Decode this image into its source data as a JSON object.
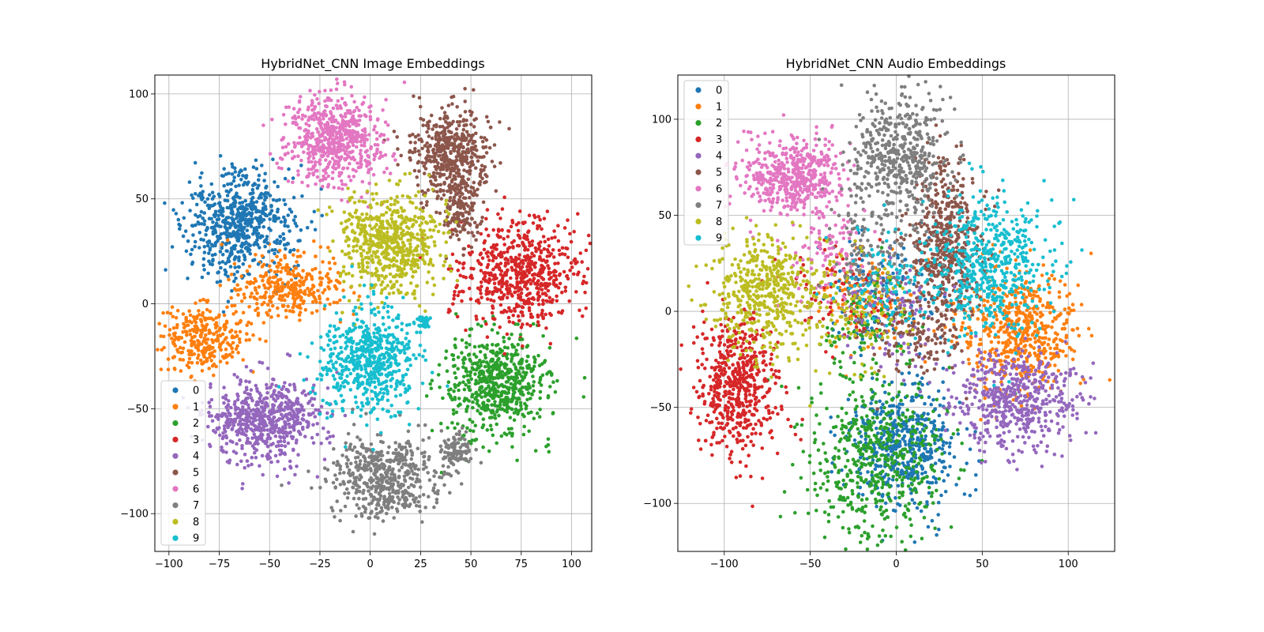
{
  "figure": {
    "background": "#ffffff"
  },
  "palette": {
    "0": "#1f77b4",
    "1": "#ff7f0e",
    "2": "#2ca02c",
    "3": "#d62728",
    "4": "#9467bd",
    "5": "#8c564b",
    "6": "#e377c2",
    "7": "#7f7f7f",
    "8": "#bcbd22",
    "9": "#17becf"
  },
  "chart_data": [
    {
      "type": "scatter",
      "title": "HybridNet_CNN Image Embeddings",
      "xlabel": "",
      "ylabel": "",
      "xlim": [
        -107,
        110
      ],
      "ylim": [
        -118,
        109
      ],
      "xticks": [
        -100,
        -75,
        -50,
        -25,
        0,
        25,
        50,
        75,
        100
      ],
      "yticks": [
        -100,
        -50,
        0,
        50,
        100
      ],
      "xtick_labels": [
        "−100",
        "−75",
        "−50",
        "−25",
        "0",
        "25",
        "50",
        "75",
        "100"
      ],
      "ytick_labels": [
        "−100",
        "−50",
        "0",
        "50",
        "100"
      ],
      "grid": true,
      "legend": {
        "placement": "lower-left",
        "entries": [
          "0",
          "1",
          "2",
          "3",
          "4",
          "5",
          "6",
          "7",
          "8",
          "9"
        ]
      },
      "series": [
        {
          "name": "0",
          "color": "#1f77b4",
          "clusters": [
            {
              "cx": -64,
              "cy": 38,
              "sx": 13,
              "sy": 13,
              "share": 1.0
            }
          ]
        },
        {
          "name": "1",
          "color": "#ff7f0e",
          "clusters": [
            {
              "cx": -40,
              "cy": 8,
              "sx": 14,
              "sy": 8,
              "share": 0.5
            },
            {
              "cx": -82,
              "cy": -16,
              "sx": 12,
              "sy": 8,
              "share": 0.5
            }
          ]
        },
        {
          "name": "2",
          "color": "#2ca02c",
          "clusters": [
            {
              "cx": 63,
              "cy": -38,
              "sx": 13,
              "sy": 12,
              "share": 1.0
            }
          ]
        },
        {
          "name": "3",
          "color": "#d62728",
          "clusters": [
            {
              "cx": 73,
              "cy": 15,
              "sx": 14,
              "sy": 13,
              "share": 1.0
            }
          ]
        },
        {
          "name": "4",
          "color": "#9467bd",
          "clusters": [
            {
              "cx": -52,
              "cy": -55,
              "sx": 14,
              "sy": 10,
              "share": 1.0
            }
          ]
        },
        {
          "name": "5",
          "color": "#8c564b",
          "clusters": [
            {
              "cx": 40,
              "cy": 72,
              "sx": 10,
              "sy": 11,
              "share": 0.75
            },
            {
              "cx": 45,
              "cy": 45,
              "sx": 5,
              "sy": 9,
              "share": 0.25
            }
          ]
        },
        {
          "name": "6",
          "color": "#e377c2",
          "clusters": [
            {
              "cx": -18,
              "cy": 78,
              "sx": 12,
              "sy": 11,
              "share": 1.0
            }
          ]
        },
        {
          "name": "7",
          "color": "#7f7f7f",
          "clusters": [
            {
              "cx": 7,
              "cy": -83,
              "sx": 14,
              "sy": 10,
              "share": 0.85
            },
            {
              "cx": 43,
              "cy": -70,
              "sx": 4,
              "sy": 4,
              "share": 0.15
            }
          ]
        },
        {
          "name": "8",
          "color": "#bcbd22",
          "clusters": [
            {
              "cx": 10,
              "cy": 28,
              "sx": 12,
              "sy": 12,
              "share": 1.0
            }
          ]
        },
        {
          "name": "9",
          "color": "#17becf",
          "clusters": [
            {
              "cx": -1,
              "cy": -27,
              "sx": 12,
              "sy": 13,
              "share": 0.95
            },
            {
              "cx": 26,
              "cy": -9,
              "sx": 2,
              "sy": 2,
              "share": 0.05
            }
          ]
        }
      ]
    },
    {
      "type": "scatter",
      "title": "HybridNet_CNN Audio Embeddings",
      "xlabel": "",
      "ylabel": "",
      "xlim": [
        -127,
        127
      ],
      "ylim": [
        -125,
        123
      ],
      "xticks": [
        -100,
        -50,
        0,
        50,
        100
      ],
      "yticks": [
        -100,
        -50,
        0,
        50,
        100
      ],
      "xtick_labels": [
        "−100",
        "−50",
        "0",
        "50",
        "100"
      ],
      "ytick_labels": [
        "−100",
        "−50",
        "0",
        "50",
        "100"
      ],
      "grid": true,
      "legend": {
        "placement": "upper-left",
        "entries": [
          "0",
          "1",
          "2",
          "3",
          "4",
          "5",
          "6",
          "7",
          "8",
          "9"
        ]
      },
      "series": [
        {
          "name": "0",
          "color": "#1f77b4",
          "clusters": [
            {
              "cx": 5,
              "cy": -70,
              "sx": 16,
              "sy": 15,
              "share": 0.8
            },
            {
              "cx": -10,
              "cy": 10,
              "sx": 14,
              "sy": 14,
              "share": 0.2
            }
          ]
        },
        {
          "name": "1",
          "color": "#ff7f0e",
          "clusters": [
            {
              "cx": 72,
              "cy": -10,
              "sx": 18,
              "sy": 16,
              "share": 0.85
            },
            {
              "cx": -15,
              "cy": 5,
              "sx": 14,
              "sy": 14,
              "share": 0.15
            }
          ]
        },
        {
          "name": "2",
          "color": "#2ca02c",
          "clusters": [
            {
              "cx": -12,
              "cy": -78,
              "sx": 20,
              "sy": 20,
              "share": 0.85
            },
            {
              "cx": -20,
              "cy": -10,
              "sx": 14,
              "sy": 14,
              "share": 0.15
            }
          ]
        },
        {
          "name": "3",
          "color": "#d62728",
          "clusters": [
            {
              "cx": -92,
              "cy": -40,
              "sx": 12,
              "sy": 18,
              "share": 0.85
            },
            {
              "cx": -35,
              "cy": 10,
              "sx": 16,
              "sy": 14,
              "share": 0.15
            }
          ]
        },
        {
          "name": "4",
          "color": "#9467bd",
          "clusters": [
            {
              "cx": 70,
              "cy": -45,
              "sx": 18,
              "sy": 13,
              "share": 0.85
            },
            {
              "cx": -5,
              "cy": 0,
              "sx": 14,
              "sy": 14,
              "share": 0.15
            }
          ]
        },
        {
          "name": "5",
          "color": "#8c564b",
          "clusters": [
            {
              "cx": 28,
              "cy": 35,
              "sx": 10,
              "sy": 22,
              "share": 0.8
            },
            {
              "cx": 10,
              "cy": -10,
              "sx": 14,
              "sy": 14,
              "share": 0.2
            }
          ]
        },
        {
          "name": "6",
          "color": "#e377c2",
          "clusters": [
            {
              "cx": -60,
              "cy": 70,
              "sx": 14,
              "sy": 10,
              "share": 0.85
            },
            {
              "cx": -40,
              "cy": 30,
              "sx": 12,
              "sy": 12,
              "share": 0.15
            }
          ]
        },
        {
          "name": "7",
          "color": "#7f7f7f",
          "clusters": [
            {
              "cx": 2,
              "cy": 80,
              "sx": 14,
              "sy": 17,
              "share": 0.8
            },
            {
              "cx": -15,
              "cy": 25,
              "sx": 14,
              "sy": 14,
              "share": 0.2
            }
          ]
        },
        {
          "name": "8",
          "color": "#bcbd22",
          "clusters": [
            {
              "cx": -75,
              "cy": 10,
              "sx": 15,
              "sy": 16,
              "share": 0.8
            },
            {
              "cx": -25,
              "cy": 0,
              "sx": 14,
              "sy": 14,
              "share": 0.2
            }
          ]
        },
        {
          "name": "9",
          "color": "#17becf",
          "clusters": [
            {
              "cx": 55,
              "cy": 25,
              "sx": 17,
              "sy": 18,
              "share": 0.85
            },
            {
              "cx": -5,
              "cy": 15,
              "sx": 14,
              "sy": 14,
              "share": 0.15
            }
          ]
        }
      ]
    }
  ]
}
